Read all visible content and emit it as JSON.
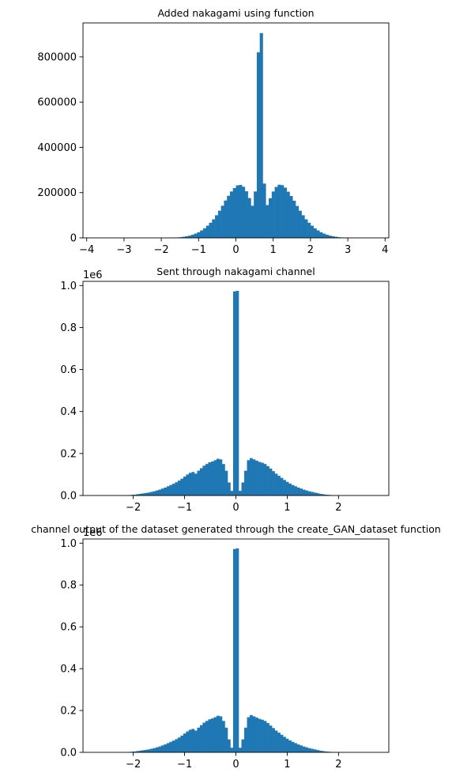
{
  "chart_data": [
    {
      "type": "bar",
      "title": "Added nakagami using function",
      "xlim": [
        -4.1,
        4.1
      ],
      "ylim": [
        0,
        950000
      ],
      "xticks": [
        -4,
        -3,
        -2,
        -1,
        0,
        1,
        2,
        3,
        4
      ],
      "xtick_labels": [
        "−4",
        "−3",
        "−2",
        "−1",
        "0",
        "1",
        "2",
        "3",
        "4"
      ],
      "yticks": [
        0,
        200000,
        400000,
        600000,
        800000
      ],
      "ytick_labels": [
        "0",
        "200000",
        "400000",
        "600000",
        "800000"
      ],
      "offset_text": "",
      "bar_color": "#1f77b4",
      "bin_start": -4.0,
      "bin_width": 0.08,
      "counts": [
        0,
        0,
        0,
        0,
        0,
        0,
        0,
        0,
        0,
        0,
        0,
        0,
        0,
        0,
        0,
        0,
        0,
        0,
        0,
        0,
        0,
        0,
        0,
        0,
        0,
        0,
        0,
        300,
        700,
        1200,
        2000,
        3000,
        5000,
        7000,
        10000,
        14000,
        19000,
        25000,
        33000,
        42000,
        54000,
        67000,
        82000,
        100000,
        120000,
        142000,
        165000,
        186000,
        205000,
        220000,
        232000,
        234000,
        226000,
        206000,
        176000,
        142000,
        205000,
        820000,
        905000,
        240000,
        145000,
        175000,
        205000,
        225000,
        235000,
        233000,
        222000,
        204000,
        185000,
        164000,
        141000,
        120000,
        100000,
        82000,
        67000,
        54000,
        42000,
        33000,
        25000,
        19000,
        14000,
        10000,
        7000,
        5000,
        3000,
        2000,
        1200,
        700,
        300,
        0,
        0,
        0,
        0,
        0,
        0,
        0,
        0,
        0,
        0,
        0
      ]
    },
    {
      "type": "bar",
      "title": "Sent through nakagami channel",
      "xlim": [
        -2.98,
        2.98
      ],
      "ylim": [
        0,
        1.02
      ],
      "xticks": [
        -2,
        -1,
        0,
        1,
        2
      ],
      "xtick_labels": [
        "−2",
        "−1",
        "0",
        "1",
        "2"
      ],
      "yticks": [
        0,
        0.2,
        0.4,
        0.6,
        0.8,
        1.0
      ],
      "ytick_labels": [
        "0.0",
        "0.2",
        "0.4",
        "0.6",
        "0.8",
        "1.0"
      ],
      "offset_text": "1e6",
      "bar_color": "#1f77b4",
      "bin_start": -2.7,
      "bin_width": 0.054,
      "counts": [
        0,
        0,
        0,
        0,
        0,
        0,
        0,
        0,
        0,
        0,
        0,
        0.002,
        0.003,
        0.004,
        0.006,
        0.008,
        0.01,
        0.012,
        0.014,
        0.017,
        0.02,
        0.024,
        0.028,
        0.033,
        0.038,
        0.044,
        0.05,
        0.056,
        0.063,
        0.071,
        0.08,
        0.09,
        0.1,
        0.108,
        0.112,
        0.104,
        0.118,
        0.13,
        0.142,
        0.15,
        0.158,
        0.162,
        0.168,
        0.175,
        0.172,
        0.15,
        0.118,
        0.062,
        0.022,
        0.972,
        0.975,
        0.022,
        0.062,
        0.118,
        0.168,
        0.178,
        0.172,
        0.166,
        0.16,
        0.156,
        0.15,
        0.14,
        0.128,
        0.116,
        0.104,
        0.094,
        0.084,
        0.074,
        0.065,
        0.057,
        0.05,
        0.044,
        0.038,
        0.033,
        0.028,
        0.024,
        0.02,
        0.017,
        0.014,
        0.011,
        0.008,
        0.006,
        0.004,
        0.003,
        0.002,
        0.001,
        0.001,
        0,
        0,
        0,
        0,
        0,
        0,
        0,
        0,
        0,
        0,
        0,
        0,
        0
      ]
    },
    {
      "type": "bar",
      "title": "channel output of the dataset generated through the create_GAN_dataset function",
      "xlim": [
        -2.98,
        2.98
      ],
      "ylim": [
        0,
        1.02
      ],
      "xticks": [
        -2,
        -1,
        0,
        1,
        2
      ],
      "xtick_labels": [
        "−2",
        "−1",
        "0",
        "1",
        "2"
      ],
      "yticks": [
        0,
        0.2,
        0.4,
        0.6,
        0.8,
        1.0
      ],
      "ytick_labels": [
        "0.0",
        "0.2",
        "0.4",
        "0.6",
        "0.8",
        "1.0"
      ],
      "offset_text": "1e6",
      "bar_color": "#1f77b4",
      "bin_start": -2.7,
      "bin_width": 0.054,
      "counts": [
        0,
        0,
        0,
        0,
        0,
        0,
        0,
        0,
        0,
        0,
        0,
        0.002,
        0.003,
        0.004,
        0.006,
        0.008,
        0.01,
        0.012,
        0.014,
        0.017,
        0.02,
        0.024,
        0.028,
        0.033,
        0.038,
        0.044,
        0.05,
        0.056,
        0.063,
        0.071,
        0.08,
        0.09,
        0.1,
        0.108,
        0.112,
        0.104,
        0.118,
        0.13,
        0.142,
        0.15,
        0.158,
        0.162,
        0.168,
        0.175,
        0.172,
        0.15,
        0.118,
        0.062,
        0.022,
        0.972,
        0.975,
        0.022,
        0.062,
        0.118,
        0.168,
        0.178,
        0.172,
        0.166,
        0.16,
        0.156,
        0.15,
        0.14,
        0.128,
        0.116,
        0.104,
        0.094,
        0.084,
        0.074,
        0.065,
        0.057,
        0.05,
        0.044,
        0.038,
        0.033,
        0.028,
        0.024,
        0.02,
        0.017,
        0.014,
        0.011,
        0.008,
        0.006,
        0.004,
        0.003,
        0.002,
        0.001,
        0.001,
        0,
        0,
        0,
        0,
        0,
        0,
        0,
        0,
        0,
        0,
        0,
        0,
        0
      ]
    }
  ]
}
